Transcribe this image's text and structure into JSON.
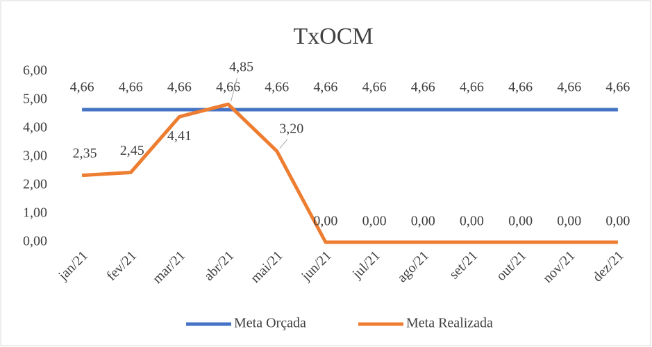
{
  "chart_data": {
    "type": "line",
    "title": "TxOCM",
    "categories": [
      "jan/21",
      "fev/21",
      "mar/21",
      "abr/21",
      "mai/21",
      "jun/21",
      "jul/21",
      "ago/21",
      "set/21",
      "out/21",
      "nov/21",
      "dez/21"
    ],
    "series": [
      {
        "name": "Meta Orçada",
        "color": "#4472c4",
        "values": [
          4.66,
          4.66,
          4.66,
          4.66,
          4.66,
          4.66,
          4.66,
          4.66,
          4.66,
          4.66,
          4.66,
          4.66
        ],
        "value_labels": [
          "4,66",
          "4,66",
          "4,66",
          "4,66",
          "4,66",
          "4,66",
          "4,66",
          "4,66",
          "4,66",
          "4,66",
          "4,66",
          "4,66"
        ]
      },
      {
        "name": "Meta Realizada",
        "color": "#ed7d31",
        "values": [
          2.35,
          2.45,
          4.41,
          4.85,
          3.2,
          0,
          0,
          0,
          0,
          0,
          0,
          0
        ],
        "value_labels": [
          "2,35",
          "2,45",
          "4,41",
          "4,85",
          "3,20",
          "0,00",
          "0,00",
          "0,00",
          "0,00",
          "0,00",
          "0,00",
          "0,00"
        ]
      }
    ],
    "ylim": [
      0,
      6
    ],
    "yticks": [
      {
        "value": 0,
        "label": "0,00"
      },
      {
        "value": 1,
        "label": "1,00"
      },
      {
        "value": 2,
        "label": "2,00"
      },
      {
        "value": 3,
        "label": "3,00"
      },
      {
        "value": 4,
        "label": "4,00"
      },
      {
        "value": 5,
        "label": "5,00"
      },
      {
        "value": 6,
        "label": "6,00"
      }
    ],
    "grid": false,
    "legend": "bottom"
  }
}
